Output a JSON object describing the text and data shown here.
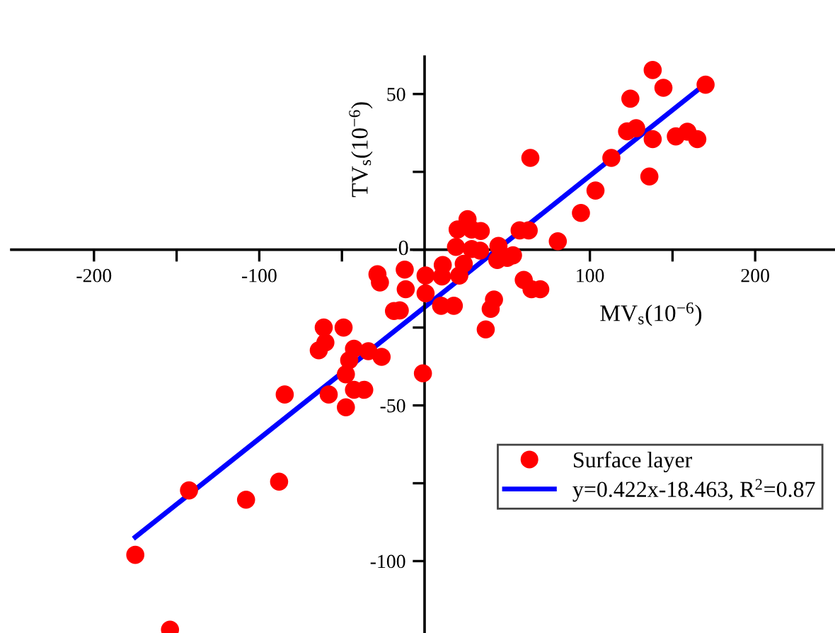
{
  "chart_data": {
    "type": "scatter",
    "xlabel": "MV$_{s}$(10$^{−6}$)",
    "ylabel": "TV$_{s}$(10$^{−6}$)",
    "xlim": [
      -250,
      250
    ],
    "ylim": [
      -124,
      62
    ],
    "xticks": [
      -200,
      {
        "value": -150,
        "label": null
      },
      -100,
      {
        "value": -50,
        "label": null
      },
      {
        "value": 50,
        "label": null
      },
      100,
      {
        "value": 150,
        "label": null
      },
      200
    ],
    "yticks": [
      -100,
      {
        "value": -75,
        "label": null
      },
      -50,
      {
        "value": -25,
        "label": null
      },
      0,
      {
        "value": 25,
        "label": null
      },
      50
    ],
    "grid": false,
    "legend": "bottom right",
    "marker": "circle",
    "series": [
      {
        "name": "Surface layer",
        "color": "#ff0000",
        "x": [
          138,
          144.5,
          124.5,
          170,
          122.5,
          128,
          138,
          152,
          159,
          165,
          136,
          113,
          64,
          103.4,
          94.6,
          80.6,
          57.5,
          63,
          26,
          20,
          34,
          28.5,
          19,
          28.5,
          33.6,
          44.7,
          44,
          50,
          53.5,
          11,
          23.7,
          10.5,
          21,
          0.6,
          0.6,
          -12,
          -11.4,
          -15,
          60,
          64.7,
          70,
          10,
          17.7,
          42,
          40,
          37,
          -28.5,
          -27,
          -18.5,
          -61,
          -49,
          -60,
          -64,
          -42.7,
          -45.6,
          -34,
          -26,
          -47.6,
          -42.7,
          -36.5,
          -58,
          -47.6,
          -84.6,
          -1,
          -88,
          -108,
          -142.5,
          -175,
          -154
        ],
        "values": [
          57.7,
          52,
          48.5,
          53,
          38,
          39,
          35.5,
          36.4,
          37.9,
          35.5,
          23.5,
          29.5,
          29.5,
          19,
          11.8,
          2.7,
          6.2,
          6.2,
          9.8,
          6.5,
          6,
          6.5,
          0.9,
          0.2,
          -0.3,
          1.2,
          -3.3,
          -2.6,
          -1.8,
          -4.9,
          -4.5,
          -8.6,
          -8.3,
          -8.3,
          -14,
          -6.4,
          -12.7,
          -19.5,
          -9.7,
          -12.7,
          -12.7,
          -18,
          -18,
          -16,
          -19,
          -25.6,
          -7.9,
          -10.5,
          -19.7,
          -25,
          -25,
          -29.8,
          -32.3,
          -31.8,
          -35.5,
          -32.6,
          -34.4,
          -40,
          -45,
          -45,
          -46.5,
          -50.6,
          -46.5,
          -39.7,
          -74.5,
          -80.3,
          -77.3,
          -98,
          -122
        ]
      },
      {
        "name": "y=0.422x-18.463, R$^{2}$=0.87",
        "color": "#0000ff",
        "type": "line",
        "line_style": "solid",
        "marker": "none",
        "x": [
          -175,
          170
        ],
        "values": [
          -92.3,
          53.3
        ]
      }
    ]
  }
}
